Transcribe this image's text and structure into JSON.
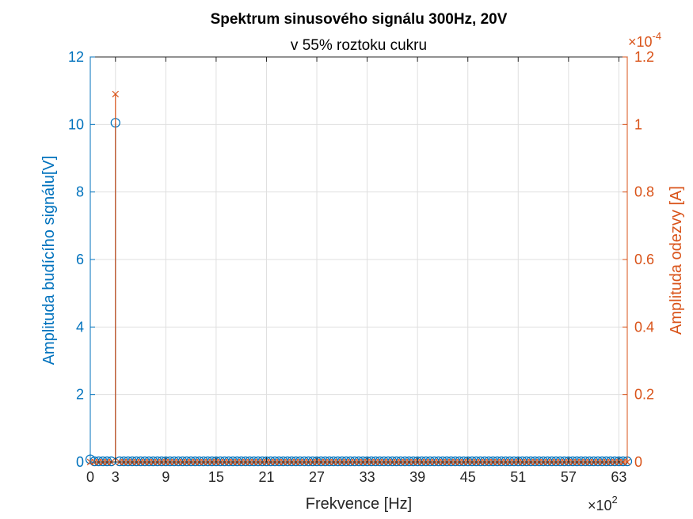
{
  "chart_data": {
    "type": "stem",
    "title": "Spektrum sinusového signálu 300Hz, 20V",
    "subtitle": "v 55% roztoku cukru",
    "xlabel": "Frekvence [Hz]",
    "xlim": [
      0,
      6400
    ],
    "x_ticks": [
      0,
      300,
      900,
      1500,
      2100,
      2700,
      3300,
      3900,
      4500,
      5100,
      5700,
      6300
    ],
    "x_tick_labels": [
      "0",
      "3",
      "9",
      "15",
      "21",
      "27",
      "33",
      "39",
      "45",
      "51",
      "57",
      "63"
    ],
    "x_exponent": {
      "base": "×10",
      "power": "2"
    },
    "grid": true,
    "y_left": {
      "label": "Amplituda budícího signálu[V]",
      "ylim": [
        0,
        12
      ],
      "ticks": [
        0,
        2,
        4,
        6,
        8,
        10,
        12
      ],
      "tick_labels": [
        "0",
        "2",
        "4",
        "6",
        "8",
        "10",
        "12"
      ],
      "color": "#0072BD"
    },
    "y_right": {
      "label": "Amplituda odezvy [A]",
      "ylim": [
        0,
        0.00012
      ],
      "ticks": [
        0,
        2e-05,
        4e-05,
        6e-05,
        8e-05,
        0.0001,
        0.00012
      ],
      "tick_labels": [
        "0",
        "0.2",
        "0.4",
        "0.6",
        "0.8",
        "1",
        "1.2"
      ],
      "exponent": {
        "base": "×10",
        "power": "-4"
      },
      "color": "#D95319"
    },
    "series": [
      {
        "axis": "left",
        "marker": "circle",
        "color": "#0072BD",
        "x_start": 0,
        "x_end": 6400,
        "x_step": 50,
        "baseline_value": 0.02,
        "points": [
          {
            "x": 0,
            "y": 0.08
          },
          {
            "x": 300,
            "y": 10.05
          }
        ]
      },
      {
        "axis": "right",
        "marker": "cross",
        "color": "#D95319",
        "x_start": 0,
        "x_end": 6400,
        "x_step": 50,
        "baseline_value": 0,
        "points": [
          {
            "x": 300,
            "y": 0.000109
          }
        ]
      }
    ]
  }
}
